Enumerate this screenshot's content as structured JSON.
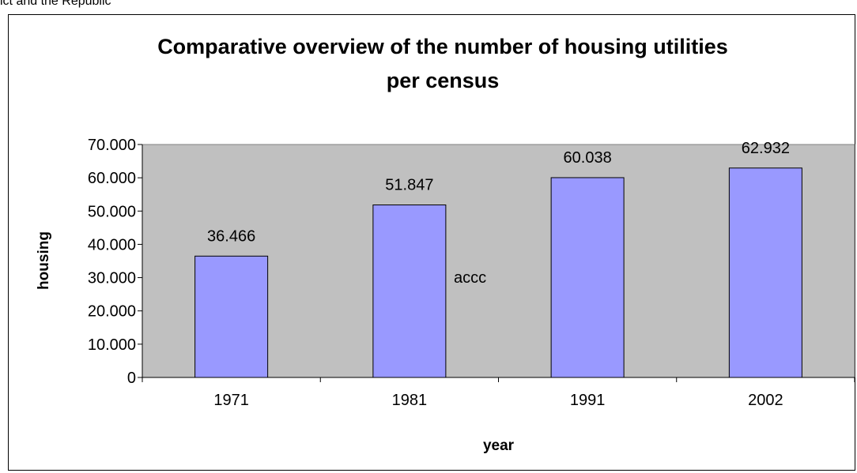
{
  "page": {
    "top_text": "ict and the Republic"
  },
  "chart_data": {
    "type": "bar",
    "title_line1": "Comparative overview of the number of housing utilities",
    "title_line2": "per census",
    "xlabel": "year",
    "ylabel": "housing",
    "categories": [
      "1971",
      "1981",
      "1991",
      "2002"
    ],
    "values": [
      36466,
      51847,
      60038,
      62932
    ],
    "value_labels": [
      "36.466",
      "51.847",
      "60.038",
      "62.932"
    ],
    "ylim": [
      0,
      70000
    ],
    "yticks": [
      0,
      10000,
      20000,
      30000,
      40000,
      50000,
      60000,
      70000
    ],
    "ytick_labels": [
      "0",
      "10.000",
      "20.000",
      "30.000",
      "40.000",
      "50.000",
      "60.000",
      "70.000"
    ],
    "annotation": "accc",
    "grid": false,
    "legend": "none",
    "colors": {
      "plot_background": "#C0C0C0",
      "bar_fill": "#9999FF",
      "bar_stroke": "#000000"
    }
  }
}
